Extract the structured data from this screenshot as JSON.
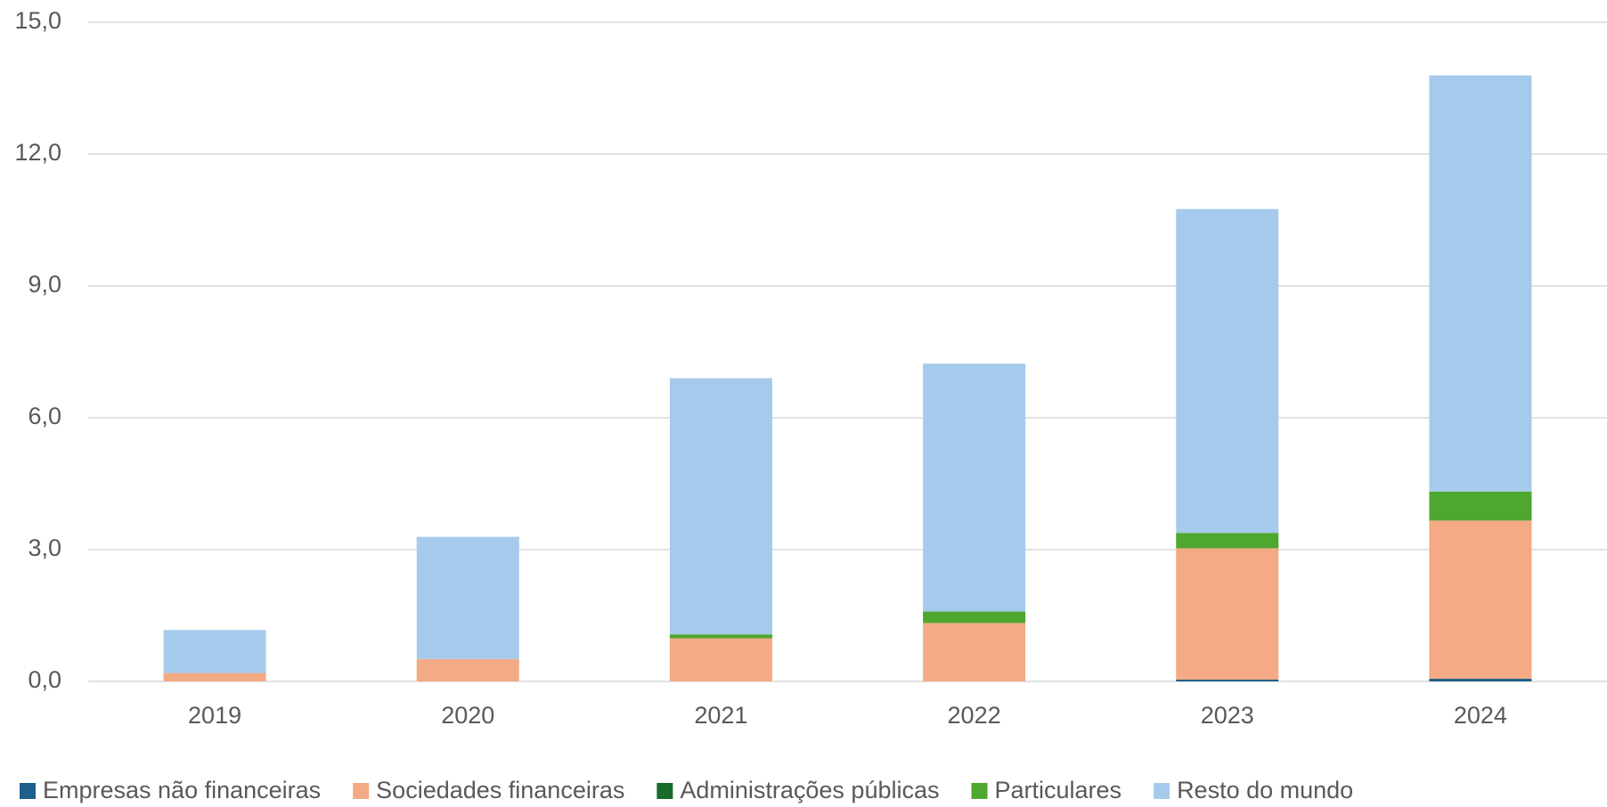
{
  "chart_data": {
    "type": "stacked_bar",
    "categories": [
      "2019",
      "2020",
      "2021",
      "2022",
      "2023",
      "2024"
    ],
    "series": [
      {
        "name": "Empresas não financeiras",
        "color": "#1f5f8b",
        "values": [
          0,
          0,
          0,
          0,
          0.04,
          0.06
        ]
      },
      {
        "name": "Sociedades financeiras",
        "color": "#f4aa84",
        "values": [
          0.19,
          0.51,
          0.98,
          1.33,
          2.99,
          3.6
        ]
      },
      {
        "name": "Administrações públicas",
        "color": "#1a6b2a",
        "values": [
          0,
          0,
          0,
          0,
          0,
          0
        ]
      },
      {
        "name": "Particulares",
        "color": "#4ea72e",
        "values": [
          0,
          0,
          0.09,
          0.26,
          0.35,
          0.66
        ]
      },
      {
        "name": "Resto do mundo",
        "color": "#a6caec",
        "values": [
          0.98,
          2.78,
          5.83,
          5.64,
          7.37,
          9.47
        ]
      }
    ],
    "ylim": [
      0,
      15
    ],
    "yticks": [
      {
        "value": 0,
        "label": "0,0"
      },
      {
        "value": 3,
        "label": "3,0"
      },
      {
        "value": 6,
        "label": "6,0"
      },
      {
        "value": 9,
        "label": "9,0"
      },
      {
        "value": 12,
        "label": "12,0"
      },
      {
        "value": 15,
        "label": "15,0"
      }
    ],
    "grid": true,
    "legend": "bottom"
  }
}
